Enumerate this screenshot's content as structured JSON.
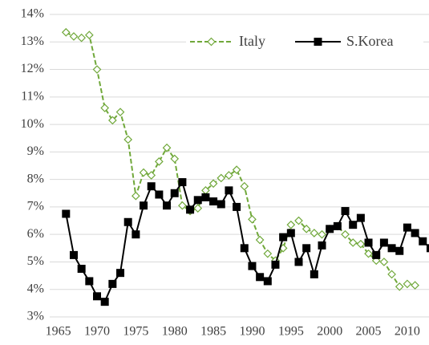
{
  "chart_data": {
    "type": "line",
    "x": [
      1966,
      1967,
      1968,
      1969,
      1970,
      1971,
      1972,
      1973,
      1974,
      1975,
      1976,
      1977,
      1978,
      1979,
      1980,
      1981,
      1982,
      1983,
      1984,
      1985,
      1986,
      1987,
      1988,
      1989,
      1990,
      1991,
      1992,
      1993,
      1994,
      1995,
      1996,
      1997,
      1998,
      1999,
      2000,
      2001,
      2002,
      2003,
      2004,
      2005,
      2006,
      2007,
      2008,
      2009,
      2010,
      2011,
      2012,
      2013
    ],
    "series": [
      {
        "name": "Italy",
        "color": "#70a83a",
        "marker": "diamond",
        "dashed": true,
        "values": [
          13.35,
          13.2,
          13.15,
          13.25,
          12.0,
          10.6,
          10.15,
          10.45,
          9.45,
          7.4,
          8.25,
          8.15,
          8.65,
          9.15,
          8.75,
          7.05,
          6.85,
          6.95,
          7.6,
          7.85,
          8.05,
          8.15,
          8.35,
          7.75,
          6.55,
          5.8,
          5.3,
          5.05,
          5.5,
          6.35,
          6.5,
          6.2,
          6.05,
          6.0,
          6.2,
          6.3,
          6.0,
          5.7,
          5.65,
          5.3,
          5.05,
          5.0,
          4.55,
          4.1,
          4.2,
          4.15,
          null,
          null
        ]
      },
      {
        "name": "S.Korea",
        "color": "#000000",
        "marker": "square",
        "dashed": false,
        "values": [
          6.75,
          5.25,
          4.75,
          4.3,
          3.75,
          3.55,
          4.2,
          4.6,
          6.45,
          6.0,
          7.05,
          7.75,
          7.45,
          7.05,
          7.5,
          7.9,
          6.9,
          7.25,
          7.35,
          7.2,
          7.1,
          7.6,
          7.0,
          5.5,
          4.85,
          4.45,
          4.3,
          4.9,
          5.9,
          6.05,
          5.0,
          5.5,
          4.55,
          5.6,
          6.2,
          6.3,
          6.85,
          6.35,
          6.6,
          5.7,
          5.25,
          5.7,
          5.5,
          5.4,
          6.25,
          6.05,
          5.75,
          5.5
        ]
      }
    ],
    "xlim": [
      1963.9,
      2012.8
    ],
    "xticks": [
      1965,
      1970,
      1975,
      1980,
      1985,
      1990,
      1995,
      2000,
      2005,
      2010
    ],
    "ylim": [
      3,
      14
    ],
    "yticks": [
      {
        "value": 3,
        "label": "3%"
      },
      {
        "value": 4,
        "label": "4%"
      },
      {
        "value": 5,
        "label": "5%"
      },
      {
        "value": 6,
        "label": "6%"
      },
      {
        "value": 7,
        "label": "7%"
      },
      {
        "value": 8,
        "label": "8%"
      },
      {
        "value": 9,
        "label": "9%"
      },
      {
        "value": 10,
        "label": "10%"
      },
      {
        "value": 11,
        "label": "11%"
      },
      {
        "value": 12,
        "label": "12%"
      },
      {
        "value": 13,
        "label": "13%"
      },
      {
        "value": 14,
        "label": "14%"
      }
    ],
    "grid": true,
    "legend": "top-right"
  }
}
